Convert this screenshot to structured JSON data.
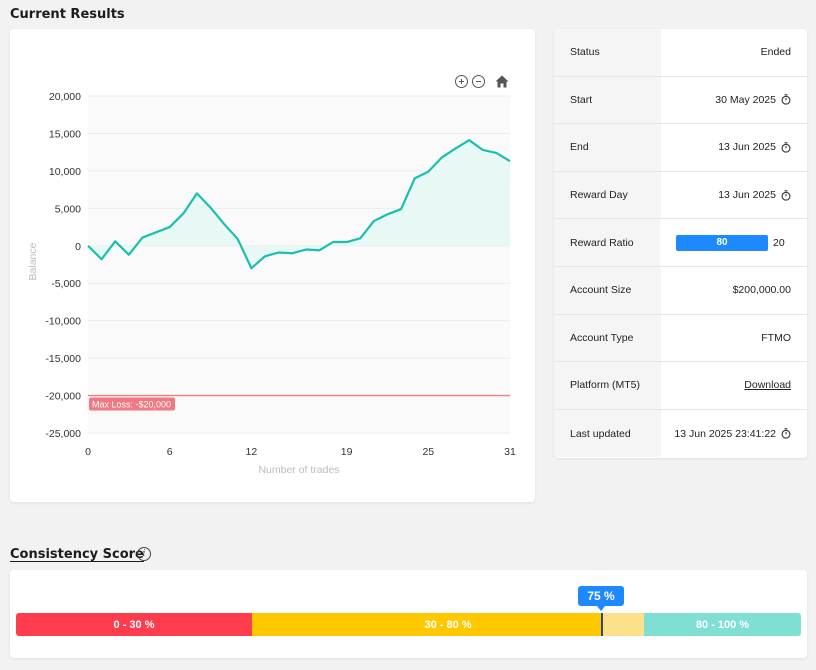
{
  "current_results": {
    "title": "Current Results"
  },
  "chart_data": {
    "type": "area",
    "x": [
      0,
      1,
      2,
      3,
      4,
      5,
      6,
      7,
      8,
      9,
      10,
      11,
      12,
      13,
      14,
      15,
      16,
      17,
      18,
      19,
      20,
      21,
      22,
      23,
      24,
      25,
      26,
      27,
      28,
      29,
      30,
      31
    ],
    "y": [
      0,
      -1800,
      600,
      -1200,
      1100,
      1800,
      2500,
      4300,
      7000,
      5100,
      2900,
      900,
      -3000,
      -1400,
      -900,
      -1000,
      -500,
      -600,
      500,
      500,
      1000,
      3300,
      4200,
      4900,
      9000,
      9900,
      11800,
      13000,
      14100,
      12800,
      12400,
      11300
    ],
    "xlabel": "Number of trades",
    "ylabel": "Balance",
    "x_ticks": [
      0,
      6,
      12,
      19,
      25,
      31
    ],
    "y_ticks": [
      20000,
      15000,
      10000,
      5000,
      0,
      -5000,
      -10000,
      -15000,
      -20000,
      -25000
    ],
    "y_tick_labels": [
      "20,000",
      "15,000",
      "10,000",
      "5,000",
      "0",
      "-5,000",
      "-10,000",
      "-15,000",
      "-20,000",
      "-25,000"
    ],
    "xlim": [
      0,
      31
    ],
    "ylim": [
      -25000,
      20000
    ],
    "max_loss": {
      "value": -20000,
      "label": "Max Loss: -$20,000",
      "color": "#f08080"
    },
    "line_color": "#1bbfae",
    "fill_color": "#e6f7f4",
    "grid": true
  },
  "info": {
    "rows": [
      {
        "key": "Status",
        "value": "Ended",
        "icon": ""
      },
      {
        "key": "Start",
        "value": "30 May 2025",
        "icon": "timer-icon"
      },
      {
        "key": "End",
        "value": "13 Jun 2025",
        "icon": "timer-icon"
      },
      {
        "key": "Reward Day",
        "value": "13 Jun 2025",
        "icon": "timer-icon"
      },
      {
        "key": "Reward Ratio",
        "value": "",
        "icon": ""
      },
      {
        "key": "Account Size",
        "value": "$200,000.00",
        "icon": ""
      },
      {
        "key": "Account Type",
        "value": "FTMO",
        "icon": ""
      },
      {
        "key": "Platform (MT5)",
        "value": "Download",
        "icon": ""
      },
      {
        "key": "Last updated",
        "value": "13 Jun 2025 23:41:22",
        "icon": "timer-icon"
      }
    ],
    "reward_ratio": {
      "trader": "80",
      "firm": "20",
      "trader_fraction": 0.8
    }
  },
  "consistency": {
    "title": "Consistency Score",
    "score_label": "75 %",
    "score_value": 75,
    "segments": [
      {
        "label": "0 - 30 %",
        "color": "#ff3b4e"
      },
      {
        "label": "30 - 80 %",
        "color": "#ffc800"
      },
      {
        "label": "80 - 100 %",
        "color": "#80dfd3"
      }
    ]
  }
}
